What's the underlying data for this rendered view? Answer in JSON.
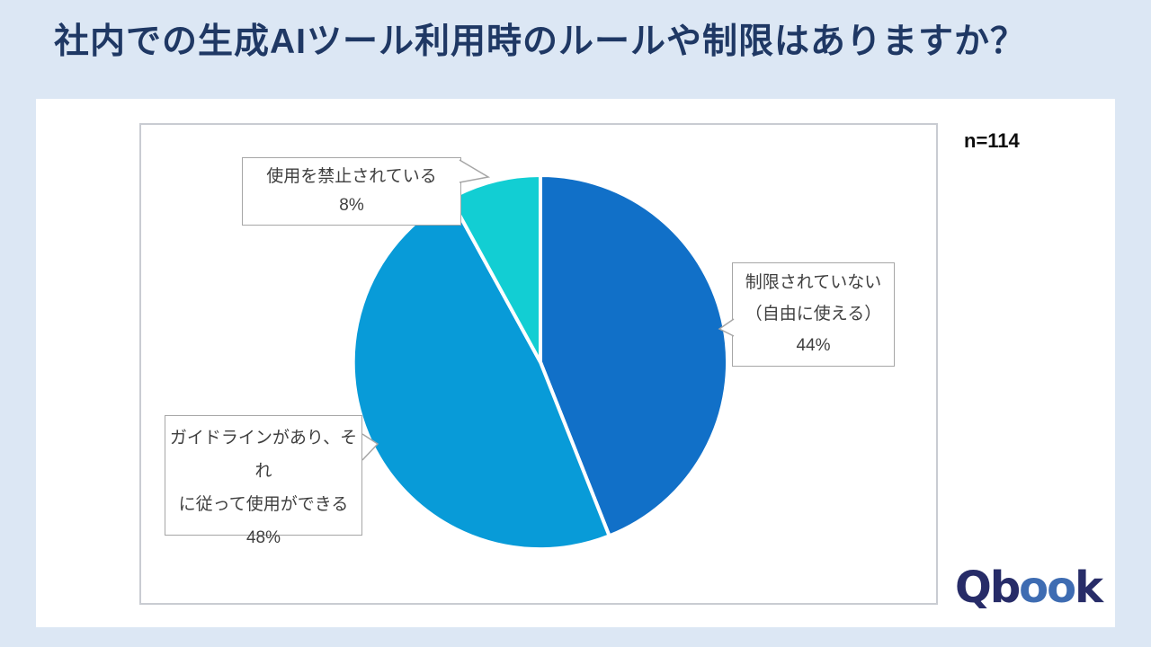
{
  "header": {
    "title": "社内での生成AIツール利用時のルールや制限はありますか？"
  },
  "chart": {
    "sample_label": "n=114"
  },
  "chart_data": {
    "type": "pie",
    "title": "社内での生成AIツール利用時のルールや制限はありますか？",
    "labels": [
      "制限されていない（自由に使える）",
      "ガイドラインがあり、それに従って使用ができる",
      "使用を禁止されている"
    ],
    "values": [
      44,
      48,
      8
    ],
    "unit": "%",
    "colors": [
      "#1170C8",
      "#089BD8",
      "#12CED3"
    ],
    "start_angle_deg": 0,
    "direction": "clockwise",
    "stroke_color": "#ffffff",
    "legend": "none",
    "data_labels": "callout-boxes",
    "sample_size": "n=114"
  },
  "callouts": [
    {
      "slice": "使用を禁止されている",
      "lines": [
        "使用を禁止されている",
        "8%"
      ]
    },
    {
      "slice": "制限されていない（自由に使える）",
      "lines": [
        "制限されていない",
        "（自由に使える）",
        "44%"
      ]
    },
    {
      "slice": "ガイドラインがあり、それに従って使用ができる",
      "lines": [
        "ガイドラインがあり、それ",
        "に従って使用ができる",
        "48%"
      ]
    }
  ],
  "logo": {
    "part1": "Q",
    "part2": "b",
    "part3": "oo",
    "part4": "k"
  }
}
